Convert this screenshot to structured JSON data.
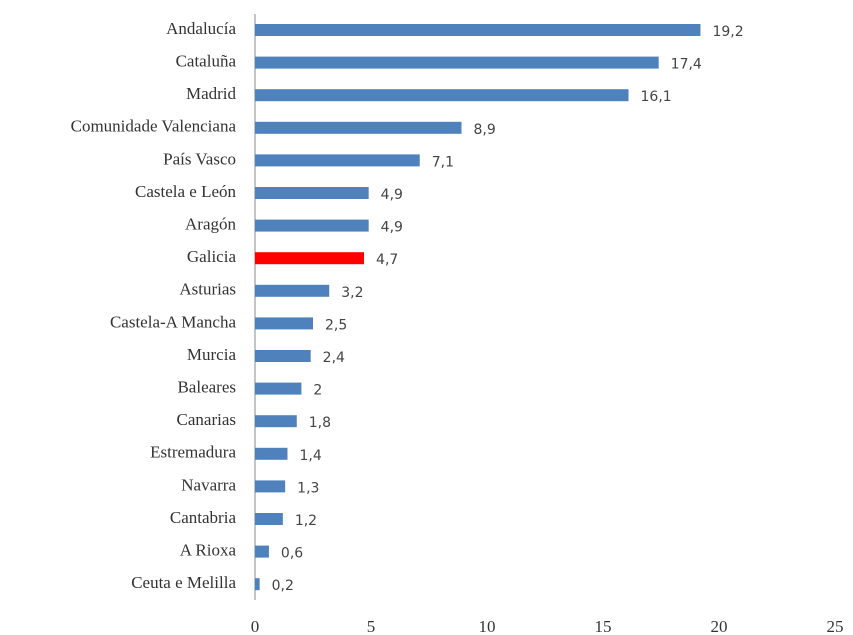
{
  "chart_data": {
    "type": "hbar",
    "categories": [
      "Andalucía",
      "Cataluña",
      "Madrid",
      "Comunidade Valenciana",
      "País Vasco",
      "Castela e León",
      "Aragón",
      "Galicia",
      "Asturias",
      "Castela-A Mancha",
      "Murcia",
      "Baleares",
      "Canarias",
      "Estremadura",
      "Navarra",
      "Cantabria",
      "A Rioxa",
      "Ceuta e Melilla"
    ],
    "values": [
      19.2,
      17.4,
      16.1,
      8.9,
      7.1,
      4.9,
      4.9,
      4.7,
      3.2,
      2.5,
      2.4,
      2,
      1.8,
      1.4,
      1.3,
      1.2,
      0.6,
      0.2
    ],
    "value_labels": [
      "19,2",
      "17,4",
      "16,1",
      "8,9",
      "7,1",
      "4,9",
      "4,9",
      "4,7",
      "3,2",
      "2,5",
      "2,4",
      "2",
      "1,8",
      "1,4",
      "1,3",
      "1,2",
      "0,6",
      "0,2"
    ],
    "colors": [
      "#4f81bd",
      "#4f81bd",
      "#4f81bd",
      "#4f81bd",
      "#4f81bd",
      "#4f81bd",
      "#4f81bd",
      "#ff0000",
      "#4f81bd",
      "#4f81bd",
      "#4f81bd",
      "#4f81bd",
      "#4f81bd",
      "#4f81bd",
      "#4f81bd",
      "#4f81bd",
      "#4f81bd",
      "#4f81bd"
    ],
    "xlim": [
      0,
      25
    ],
    "xticks": [
      0,
      5,
      10,
      15,
      20,
      25
    ],
    "grid": false
  }
}
